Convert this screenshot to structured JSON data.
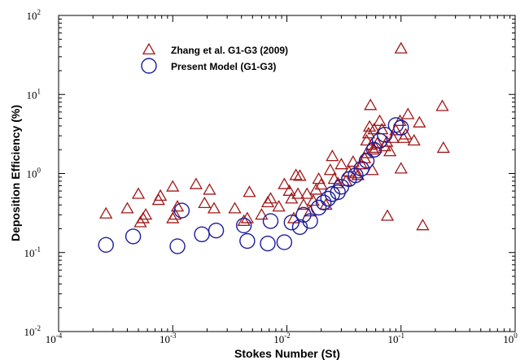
{
  "chart_data": {
    "type": "scatter",
    "xlabel": "Stokes Number (St)",
    "ylabel": "Deposition Efficiency (%)",
    "x_scale": "log",
    "y_scale": "log",
    "xlim": [
      0.0001,
      1
    ],
    "ylim": [
      0.01,
      100
    ],
    "x_ticks": [
      {
        "base": "10",
        "exp": "-4"
      },
      {
        "base": "10",
        "exp": "-3"
      },
      {
        "base": "10",
        "exp": "-2"
      },
      {
        "base": "10",
        "exp": "-1"
      },
      {
        "base": "10",
        "exp": "0"
      }
    ],
    "y_ticks": [
      {
        "base": "10",
        "exp": "-2"
      },
      {
        "base": "10",
        "exp": "-1"
      },
      {
        "base": "10",
        "exp": "0"
      },
      {
        "base": "10",
        "exp": "1"
      },
      {
        "base": "10",
        "exp": "2"
      }
    ],
    "grid": false,
    "legend_position": "top-left",
    "series": [
      {
        "name": "Zhang et al. G1-G3 (2009)",
        "marker": "triangle",
        "color": "#a01818",
        "points": [
          [
            0.00026,
            0.31
          ],
          [
            0.0004,
            0.36
          ],
          [
            0.0005,
            0.55
          ],
          [
            0.00052,
            0.24
          ],
          [
            0.00055,
            0.27
          ],
          [
            0.00058,
            0.3
          ],
          [
            0.00075,
            0.46
          ],
          [
            0.00078,
            0.52
          ],
          [
            0.001,
            0.68
          ],
          [
            0.001,
            0.27
          ],
          [
            0.00105,
            0.3
          ],
          [
            0.0011,
            0.38
          ],
          [
            0.0016,
            0.73
          ],
          [
            0.0019,
            0.42
          ],
          [
            0.0021,
            0.62
          ],
          [
            0.0023,
            0.36
          ],
          [
            0.0035,
            0.36
          ],
          [
            0.0042,
            0.25
          ],
          [
            0.0045,
            0.27
          ],
          [
            0.0047,
            0.58
          ],
          [
            0.006,
            0.3
          ],
          [
            0.0068,
            0.43
          ],
          [
            0.0072,
            0.48
          ],
          [
            0.0085,
            0.38
          ],
          [
            0.0095,
            0.73
          ],
          [
            0.0105,
            0.6
          ],
          [
            0.011,
            0.48
          ],
          [
            0.0115,
            0.27
          ],
          [
            0.012,
            0.95
          ],
          [
            0.013,
            0.93
          ],
          [
            0.0125,
            0.55
          ],
          [
            0.014,
            0.4
          ],
          [
            0.015,
            0.55
          ],
          [
            0.016,
            0.33
          ],
          [
            0.017,
            0.45
          ],
          [
            0.018,
            0.62
          ],
          [
            0.019,
            0.85
          ],
          [
            0.02,
            0.72
          ],
          [
            0.022,
            0.4
          ],
          [
            0.024,
            1.1
          ],
          [
            0.025,
            1.65
          ],
          [
            0.026,
            0.85
          ],
          [
            0.028,
            0.75
          ],
          [
            0.03,
            1.3
          ],
          [
            0.033,
            0.8
          ],
          [
            0.035,
            1.05
          ],
          [
            0.038,
            1.4
          ],
          [
            0.04,
            1.0
          ],
          [
            0.042,
            0.95
          ],
          [
            0.045,
            1.3
          ],
          [
            0.048,
            1.55
          ],
          [
            0.05,
            1.8
          ],
          [
            0.05,
            2.6
          ],
          [
            0.052,
            3.2
          ],
          [
            0.053,
            3.9
          ],
          [
            0.054,
            7.3
          ],
          [
            0.055,
            2.3
          ],
          [
            0.056,
            1.1
          ],
          [
            0.057,
            2.0
          ],
          [
            0.058,
            3.6
          ],
          [
            0.06,
            2.1
          ],
          [
            0.062,
            2.4
          ],
          [
            0.065,
            4.6
          ],
          [
            0.068,
            3.6
          ],
          [
            0.072,
            2.2
          ],
          [
            0.075,
            2.5
          ],
          [
            0.076,
            0.29
          ],
          [
            0.08,
            1.9
          ],
          [
            0.085,
            2.8
          ],
          [
            0.09,
            3.5
          ],
          [
            0.098,
            4.6
          ],
          [
            0.1,
            38
          ],
          [
            0.1,
            1.15
          ],
          [
            0.105,
            2.8
          ],
          [
            0.11,
            3.1
          ],
          [
            0.115,
            5.6
          ],
          [
            0.13,
            2.6
          ],
          [
            0.145,
            4.4
          ],
          [
            0.155,
            0.22
          ],
          [
            0.23,
            7.1
          ],
          [
            0.235,
            2.1
          ]
        ]
      },
      {
        "name": "Present Model (G1-G3)",
        "marker": "circle",
        "color": "#1c1c9a",
        "points": [
          [
            0.00026,
            0.125
          ],
          [
            0.00045,
            0.16
          ],
          [
            0.0011,
            0.12
          ],
          [
            0.0012,
            0.34
          ],
          [
            0.0018,
            0.17
          ],
          [
            0.0024,
            0.19
          ],
          [
            0.0042,
            0.22
          ],
          [
            0.0045,
            0.14
          ],
          [
            0.0068,
            0.13
          ],
          [
            0.0072,
            0.25
          ],
          [
            0.0095,
            0.135
          ],
          [
            0.011,
            0.24
          ],
          [
            0.013,
            0.21
          ],
          [
            0.014,
            0.3
          ],
          [
            0.016,
            0.25
          ],
          [
            0.019,
            0.37
          ],
          [
            0.021,
            0.43
          ],
          [
            0.023,
            0.48
          ],
          [
            0.025,
            0.55
          ],
          [
            0.028,
            0.58
          ],
          [
            0.03,
            0.68
          ],
          [
            0.035,
            0.85
          ],
          [
            0.04,
            0.95
          ],
          [
            0.045,
            1.15
          ],
          [
            0.05,
            1.45
          ],
          [
            0.058,
            2.0
          ],
          [
            0.065,
            2.6
          ],
          [
            0.072,
            3.1
          ],
          [
            0.09,
            4.1
          ],
          [
            0.1,
            3.8
          ]
        ]
      }
    ]
  }
}
